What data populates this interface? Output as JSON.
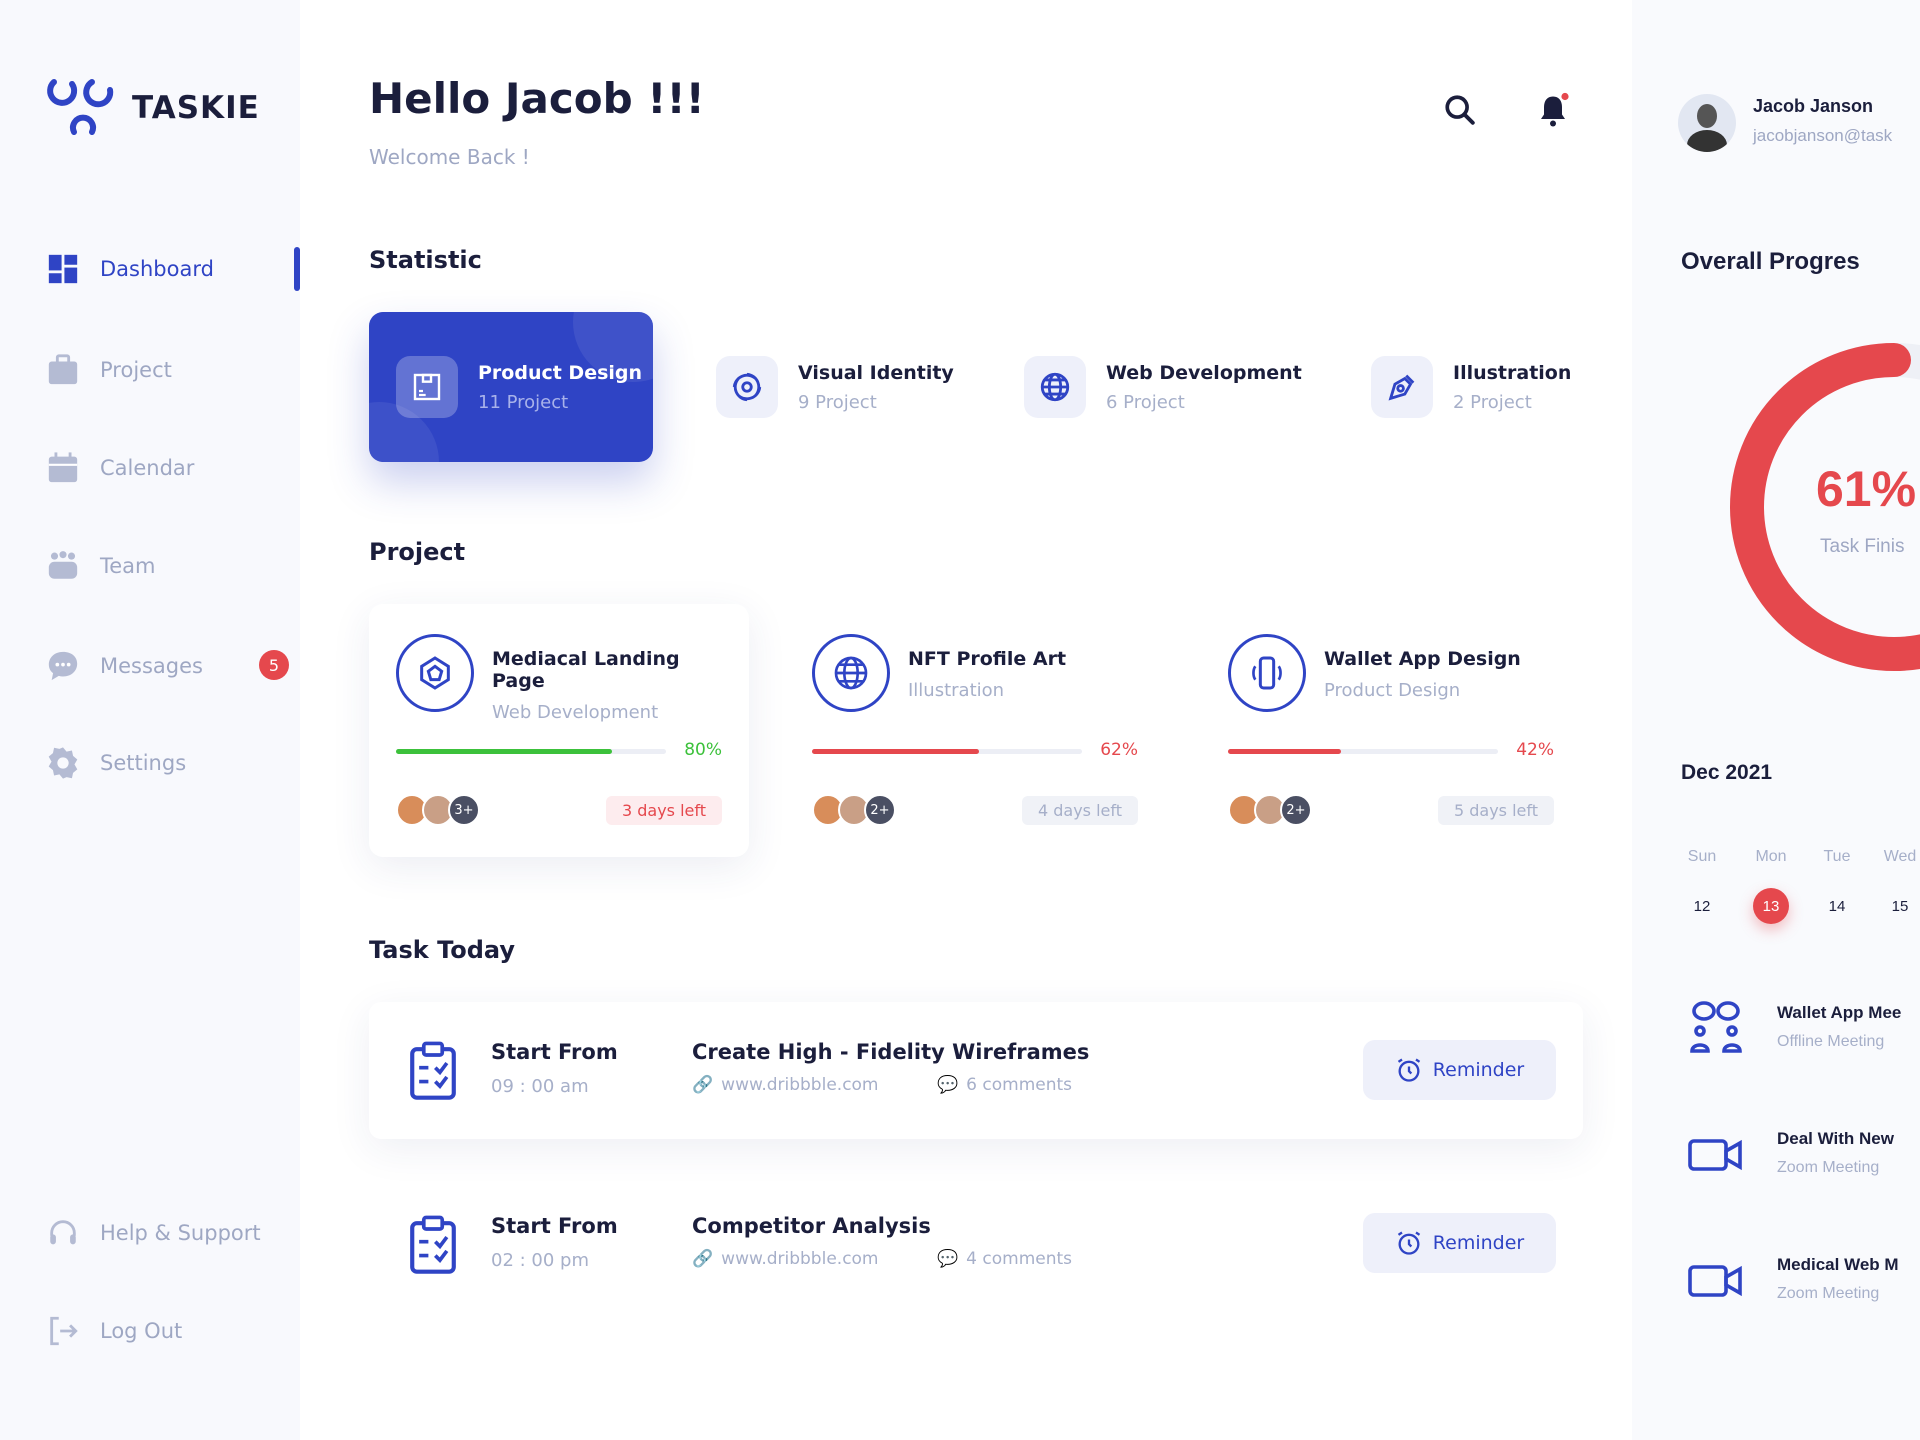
{
  "app": {
    "name": "TASKIE"
  },
  "colors": {
    "accent": "#2f44c5",
    "danger": "#e5484d",
    "success": "#3cc13b"
  },
  "sidebar": {
    "items": [
      {
        "label": "Dashboard",
        "icon": "grid-icon",
        "active": true
      },
      {
        "label": "Project",
        "icon": "briefcase-icon"
      },
      {
        "label": "Calendar",
        "icon": "calendar-icon"
      },
      {
        "label": "Team",
        "icon": "team-icon"
      },
      {
        "label": "Messages",
        "icon": "chat-icon",
        "badge": "5"
      },
      {
        "label": "Settings",
        "icon": "gear-icon"
      }
    ],
    "bottom": [
      {
        "label": "Help & Support",
        "icon": "headset-icon"
      },
      {
        "label": "Log Out",
        "icon": "logout-icon"
      }
    ]
  },
  "header": {
    "title": "Hello Jacob !!!",
    "subtitle": "Welcome Back !"
  },
  "user": {
    "name": "Jacob Janson",
    "email": "jacobjanson@task"
  },
  "statistic": {
    "heading": "Statistic",
    "items": [
      {
        "title": "Product Design",
        "count": "11 Project",
        "icon": "box-icon"
      },
      {
        "title": "Visual Identity",
        "count": "9 Project",
        "icon": "spiral-icon"
      },
      {
        "title": "Web Development",
        "count": "6 Project",
        "icon": "globe-icon"
      },
      {
        "title": "Illustration",
        "count": "2 Project",
        "icon": "pen-tool-icon"
      }
    ]
  },
  "projects": {
    "heading": "Project",
    "items": [
      {
        "title": "Mediacal Landing Page",
        "category": "Web Development",
        "progress": 80,
        "progress_label": "80%",
        "extra": "3+",
        "deadline": "3 days left"
      },
      {
        "title": "NFT Profile Art",
        "category": "Illustration",
        "progress": 62,
        "progress_label": "62%",
        "extra": "2+",
        "deadline": "4 days left"
      },
      {
        "title": "Wallet App Design",
        "category": "Product Design",
        "progress": 42,
        "progress_label": "42%",
        "extra": "2+",
        "deadline": "5 days left"
      }
    ]
  },
  "tasks": {
    "heading": "Task Today",
    "items": [
      {
        "label": "Start From",
        "time": "09 : 00 am",
        "title": "Create High - Fidelity Wireframes",
        "link": "www.dribbble.com",
        "comments": "6 comments",
        "button": "Reminder"
      },
      {
        "label": "Start From",
        "time": "02 : 00 pm",
        "title": "Competitor Analysis",
        "link": "www.dribbble.com",
        "comments": "4 comments",
        "button": "Reminder"
      }
    ]
  },
  "overall": {
    "heading": "Overall Progres",
    "percent": 61,
    "percent_label": "61%",
    "caption": "Task Finis"
  },
  "calendar": {
    "month": "Dec 2021",
    "days": [
      "Sun",
      "Mon",
      "Tue",
      "Wed"
    ],
    "dates": [
      "12",
      "13",
      "14",
      "15"
    ],
    "selected": "13"
  },
  "meetings": [
    {
      "title": "Wallet App Mee",
      "type": "Offline Meeting",
      "icon": "people-icon"
    },
    {
      "title": "Deal With New",
      "type": "Zoom Meeting",
      "icon": "video-icon"
    },
    {
      "title": "Medical Web M",
      "type": "Zoom Meeting",
      "icon": "video-icon"
    }
  ]
}
